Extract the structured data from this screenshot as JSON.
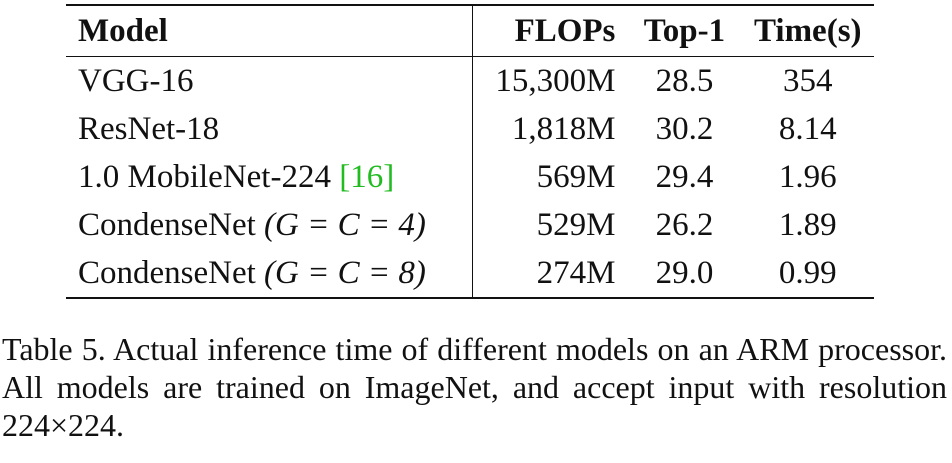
{
  "table": {
    "headers": {
      "model": "Model",
      "flops": "FLOPs",
      "top1": "Top-1",
      "time": "Time(s)"
    },
    "rows": [
      {
        "model": "VGG-16",
        "flops": "15,300M",
        "top1": "28.5",
        "time": "354"
      },
      {
        "model": "ResNet-18",
        "flops": "1,818M",
        "top1": "30.2",
        "time": "8.14"
      },
      {
        "model": "1.0 MobileNet-224",
        "citation": "[16]",
        "flops": "569M",
        "top1": "29.4",
        "time": "1.96"
      },
      {
        "model": "CondenseNet",
        "model_params": "(G = C = 4)",
        "flops": "529M",
        "top1": "26.2",
        "time": "1.89"
      },
      {
        "model": "CondenseNet",
        "model_params": "(G = C = 8)",
        "flops": "274M",
        "top1": "29.0",
        "time": "0.99"
      }
    ]
  },
  "caption": {
    "text": "Table 5. Actual inference time of different models on an ARM processor. All models are trained on ImageNet, and accept input with resolution 224×224."
  }
}
